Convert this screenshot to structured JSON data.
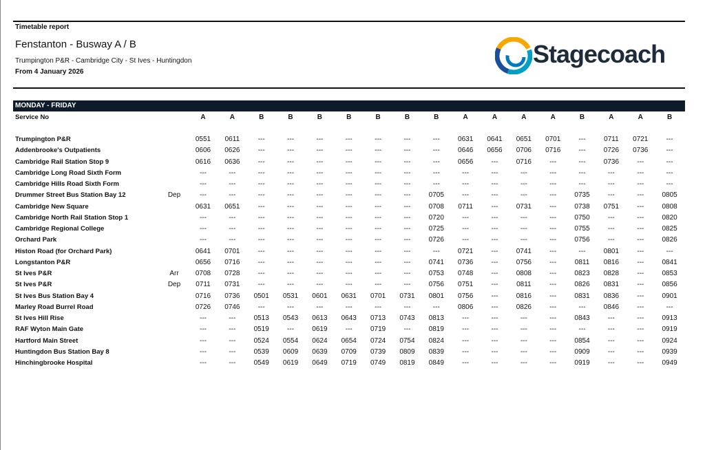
{
  "header": {
    "label": "Timetable report",
    "title": "Fenstanton - Busway A / B",
    "subtitle": "Trumpington P&R - Cambridge City - St Ives - Huntingdon",
    "date": "From 4 January 2026"
  },
  "logo": {
    "text": "Stagecoach"
  },
  "table": {
    "day": "MONDAY - FRIDAY",
    "service_label": "Service No",
    "services": [
      "A",
      "A",
      "B",
      "B",
      "B",
      "B",
      "B",
      "B",
      "B",
      "A",
      "A",
      "A",
      "A",
      "B",
      "A",
      "A",
      "B"
    ],
    "rows": [
      {
        "stop": "Trumpington P&R",
        "times": [
          "0551",
          "0611",
          "---",
          "---",
          "---",
          "---",
          "---",
          "---",
          "---",
          "0631",
          "0641",
          "0651",
          "0701",
          "---",
          "0711",
          "0721",
          "---"
        ]
      },
      {
        "stop": "Addenbrooke's Outpatients",
        "times": [
          "0606",
          "0626",
          "---",
          "---",
          "---",
          "---",
          "---",
          "---",
          "---",
          "0646",
          "0656",
          "0706",
          "0716",
          "---",
          "0726",
          "0736",
          "---"
        ]
      },
      {
        "stop": "Cambridge Rail Station Stop 9",
        "times": [
          "0616",
          "0636",
          "---",
          "---",
          "---",
          "---",
          "---",
          "---",
          "---",
          "0656",
          "---",
          "0716",
          "---",
          "---",
          "0736",
          "---",
          "---"
        ]
      },
      {
        "stop": "Cambridge Long Road Sixth Form",
        "times": [
          "---",
          "---",
          "---",
          "---",
          "---",
          "---",
          "---",
          "---",
          "---",
          "---",
          "---",
          "---",
          "---",
          "---",
          "---",
          "---",
          "---"
        ]
      },
      {
        "stop": "Cambridge Hills Road Sixth Form",
        "times": [
          "---",
          "---",
          "---",
          "---",
          "---",
          "---",
          "---",
          "---",
          "---",
          "---",
          "---",
          "---",
          "---",
          "---",
          "---",
          "---",
          "---"
        ]
      },
      {
        "stop": "Drummer Street Bus Station Bay 12",
        "note": "Dep",
        "times": [
          "---",
          "---",
          "---",
          "---",
          "---",
          "---",
          "---",
          "---",
          "0705",
          "---",
          "---",
          "---",
          "---",
          "0735",
          "---",
          "---",
          "0805"
        ]
      },
      {
        "stop": "Cambridge New Square",
        "times": [
          "0631",
          "0651",
          "---",
          "---",
          "---",
          "---",
          "---",
          "---",
          "0708",
          "0711",
          "---",
          "0731",
          "---",
          "0738",
          "0751",
          "---",
          "0808"
        ]
      },
      {
        "stop": "Cambridge North Rail Station Stop 1",
        "times": [
          "---",
          "---",
          "---",
          "---",
          "---",
          "---",
          "---",
          "---",
          "0720",
          "---",
          "---",
          "---",
          "---",
          "0750",
          "---",
          "---",
          "0820"
        ]
      },
      {
        "stop": "Cambridge Regional College",
        "times": [
          "---",
          "---",
          "---",
          "---",
          "---",
          "---",
          "---",
          "---",
          "0725",
          "---",
          "---",
          "---",
          "---",
          "0755",
          "---",
          "---",
          "0825"
        ]
      },
      {
        "stop": "Orchard Park",
        "times": [
          "---",
          "---",
          "---",
          "---",
          "---",
          "---",
          "---",
          "---",
          "0726",
          "---",
          "---",
          "---",
          "---",
          "0756",
          "---",
          "---",
          "0826"
        ]
      },
      {
        "stop": "Histon Road (for Orchard Park)",
        "times": [
          "0641",
          "0701",
          "---",
          "---",
          "---",
          "---",
          "---",
          "---",
          "---",
          "0721",
          "---",
          "0741",
          "---",
          "---",
          "0801",
          "---",
          "---"
        ]
      },
      {
        "stop": "Longstanton P&R",
        "times": [
          "0656",
          "0716",
          "---",
          "---",
          "---",
          "---",
          "---",
          "---",
          "0741",
          "0736",
          "---",
          "0756",
          "---",
          "0811",
          "0816",
          "---",
          "0841"
        ]
      },
      {
        "stop": "St Ives P&R",
        "note": "Arr",
        "times": [
          "0708",
          "0728",
          "---",
          "---",
          "---",
          "---",
          "---",
          "---",
          "0753",
          "0748",
          "---",
          "0808",
          "---",
          "0823",
          "0828",
          "---",
          "0853"
        ]
      },
      {
        "stop": "St Ives P&R",
        "note": "Dep",
        "times": [
          "0711",
          "0731",
          "---",
          "---",
          "---",
          "---",
          "---",
          "---",
          "0756",
          "0751",
          "---",
          "0811",
          "---",
          "0826",
          "0831",
          "---",
          "0856"
        ]
      },
      {
        "stop": "St Ives Bus Station Bay 4",
        "times": [
          "0716",
          "0736",
          "0501",
          "0531",
          "0601",
          "0631",
          "0701",
          "0731",
          "0801",
          "0756",
          "---",
          "0816",
          "---",
          "0831",
          "0836",
          "---",
          "0901"
        ]
      },
      {
        "stop": "Marley Road Burrel Road",
        "times": [
          "0726",
          "0746",
          "---",
          "---",
          "---",
          "---",
          "---",
          "---",
          "---",
          "0806",
          "---",
          "0826",
          "---",
          "---",
          "0846",
          "---",
          "---"
        ]
      },
      {
        "stop": "St Ives Hill Rise",
        "times": [
          "---",
          "---",
          "0513",
          "0543",
          "0613",
          "0643",
          "0713",
          "0743",
          "0813",
          "---",
          "---",
          "---",
          "---",
          "0843",
          "---",
          "---",
          "0913"
        ]
      },
      {
        "stop": "RAF Wyton Main Gate",
        "times": [
          "---",
          "---",
          "0519",
          "---",
          "0619",
          "---",
          "0719",
          "---",
          "0819",
          "---",
          "---",
          "---",
          "---",
          "---",
          "---",
          "---",
          "0919"
        ]
      },
      {
        "stop": "Hartford Main Street",
        "times": [
          "---",
          "---",
          "0524",
          "0554",
          "0624",
          "0654",
          "0724",
          "0754",
          "0824",
          "---",
          "---",
          "---",
          "---",
          "0854",
          "---",
          "---",
          "0924"
        ]
      },
      {
        "stop": "Huntingdon Bus Station Bay 8",
        "times": [
          "---",
          "---",
          "0539",
          "0609",
          "0639",
          "0709",
          "0739",
          "0809",
          "0839",
          "---",
          "---",
          "---",
          "---",
          "0909",
          "---",
          "---",
          "0939"
        ]
      },
      {
        "stop": "Hinchingbrooke Hospital",
        "times": [
          "---",
          "---",
          "0549",
          "0619",
          "0649",
          "0719",
          "0749",
          "0819",
          "0849",
          "---",
          "---",
          "---",
          "---",
          "0919",
          "---",
          "---",
          "0949"
        ]
      }
    ]
  }
}
